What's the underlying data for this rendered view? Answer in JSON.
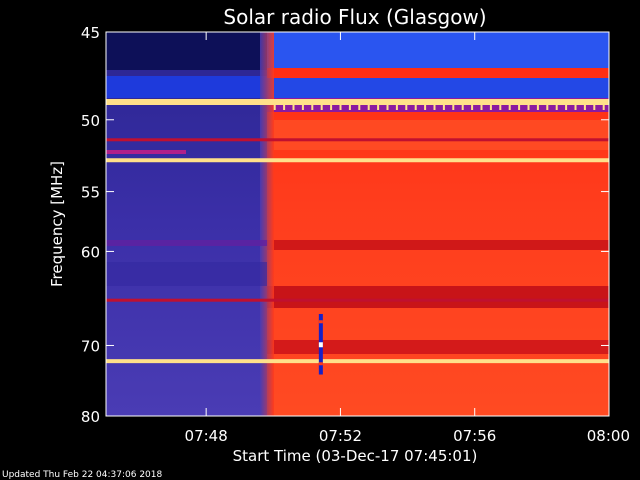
{
  "chart_data": {
    "type": "heatmap",
    "title": "Solar radio Flux (Glasgow)",
    "xlabel": "Start Time (03-Dec-17 07:45:01)",
    "ylabel": "Frequency [MHz]",
    "x_range": [
      "07:45:01",
      "08:00"
    ],
    "y_range": [
      45,
      80
    ],
    "x_ticks": [
      {
        "value": "07:48",
        "label": "07:48"
      },
      {
        "value": "07:52",
        "label": "07:52"
      },
      {
        "value": "07:56",
        "label": "07:56"
      },
      {
        "value": "08:00",
        "label": "08:00"
      }
    ],
    "y_ticks": [
      {
        "value": 45,
        "label": "45"
      },
      {
        "value": 50,
        "label": "50"
      },
      {
        "value": 55,
        "label": "55"
      },
      {
        "value": 60,
        "label": "60"
      },
      {
        "value": 70,
        "label": "70"
      },
      {
        "value": 80,
        "label": "80"
      }
    ],
    "y_scale": "reciprocal",
    "colors": {
      "low": "#1a1aa0",
      "quiet_background": "#3b2fa8",
      "high": "#ff3a1a",
      "peak": "#ffe08a",
      "axis": "#ffffff"
    },
    "observation_start": "07:49:50",
    "interference_lines_mhz": [
      48.9,
      51.3,
      52.7,
      64.8,
      72.0
    ],
    "burst": {
      "time": "07:51:25",
      "freq_range_mhz": [
        66.3,
        73.8
      ]
    }
  },
  "footer": "Updated Thu Feb 22 04:37:06 2018"
}
